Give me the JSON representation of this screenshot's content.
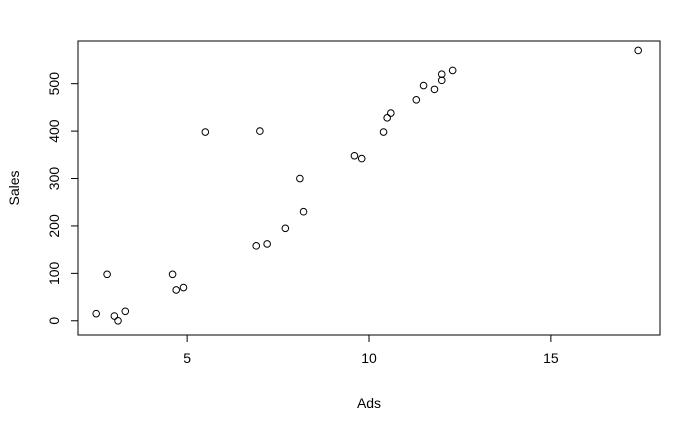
{
  "chart_data": {
    "type": "scatter",
    "title": "",
    "xlabel": "Ads",
    "ylabel": "Sales",
    "xlim": [
      2.0,
      18.0
    ],
    "ylim": [
      -30,
      590
    ],
    "xticks": [
      5,
      10,
      15
    ],
    "yticks": [
      0,
      100,
      200,
      300,
      400,
      500
    ],
    "grid": false,
    "marker": "open-circle",
    "points": [
      {
        "x": 2.5,
        "y": 15
      },
      {
        "x": 2.8,
        "y": 98
      },
      {
        "x": 3.0,
        "y": 10
      },
      {
        "x": 3.1,
        "y": 0
      },
      {
        "x": 3.3,
        "y": 20
      },
      {
        "x": 4.6,
        "y": 98
      },
      {
        "x": 4.7,
        "y": 65
      },
      {
        "x": 4.9,
        "y": 70
      },
      {
        "x": 5.5,
        "y": 398
      },
      {
        "x": 6.9,
        "y": 158
      },
      {
        "x": 7.0,
        "y": 400
      },
      {
        "x": 7.2,
        "y": 162
      },
      {
        "x": 7.7,
        "y": 195
      },
      {
        "x": 8.1,
        "y": 300
      },
      {
        "x": 8.2,
        "y": 230
      },
      {
        "x": 9.6,
        "y": 348
      },
      {
        "x": 9.8,
        "y": 342
      },
      {
        "x": 10.4,
        "y": 398
      },
      {
        "x": 10.5,
        "y": 428
      },
      {
        "x": 10.6,
        "y": 438
      },
      {
        "x": 11.3,
        "y": 466
      },
      {
        "x": 11.5,
        "y": 496
      },
      {
        "x": 11.8,
        "y": 488
      },
      {
        "x": 12.0,
        "y": 507
      },
      {
        "x": 12.0,
        "y": 520
      },
      {
        "x": 12.3,
        "y": 528
      },
      {
        "x": 17.4,
        "y": 570
      }
    ]
  }
}
